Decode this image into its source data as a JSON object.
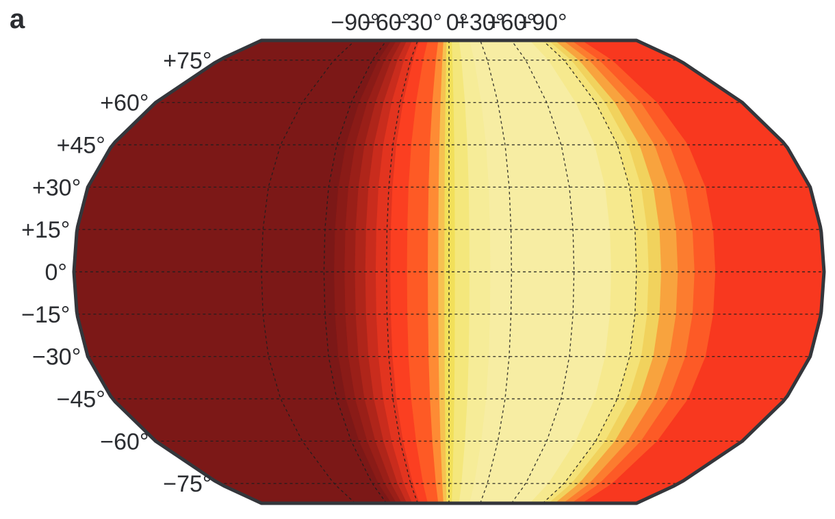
{
  "panel_label": "a",
  "map": {
    "projection": "Robinson",
    "longitude_labels": [
      "−90°",
      "−60°",
      "−30°",
      "0°",
      "+30°",
      "+60°",
      "+90°"
    ],
    "longitude_values": [
      -90,
      -60,
      -30,
      0,
      30,
      60,
      90
    ],
    "latitude_labels": [
      "+75°",
      "+60°",
      "+45°",
      "+30°",
      "+15°",
      "0°",
      "−15°",
      "−30°",
      "−45°",
      "−60°",
      "−75°"
    ],
    "latitude_values": [
      75,
      60,
      45,
      30,
      15,
      0,
      -15,
      -30,
      -45,
      -60,
      -75
    ],
    "latitude_extent": 82,
    "longitude_extent": 180,
    "gridlines": "dashed",
    "colors": {
      "outline": "#34363b",
      "grid": "#1f1f1f",
      "label": "#2b2d31"
    },
    "color_bands": [
      {
        "to_lon": -55,
        "color": "#7c1817"
      },
      {
        "to_lon": -50,
        "color": "#8a1b17"
      },
      {
        "to_lon": -45,
        "color": "#9a1f18"
      },
      {
        "to_lon": -40,
        "color": "#af251a"
      },
      {
        "to_lon": -35,
        "color": "#c92c1d"
      },
      {
        "to_lon": -28,
        "color": "#e2341f"
      },
      {
        "to_lon": -20,
        "color": "#fb3f21"
      },
      {
        "to_lon": -10,
        "color": "#fe5a25"
      },
      {
        "to_lon": -5,
        "color": "#fe8b34"
      },
      {
        "to_lon": -2,
        "color": "#f6c151"
      },
      {
        "to_lon": 3,
        "color": "#f2e05a"
      },
      {
        "to_lon": 10,
        "color": "#f4e77c"
      },
      {
        "to_lon": 20,
        "color": "#f6ec98"
      },
      {
        "to_lon": 78,
        "color": "#f7eda3"
      },
      {
        "to_lon": 90,
        "color": "#f6e98e"
      },
      {
        "to_lon": 96,
        "color": "#f4e277"
      },
      {
        "to_lon": 102,
        "color": "#f1d25d"
      },
      {
        "to_lon": 110,
        "color": "#f8a33e"
      },
      {
        "to_lon": 118,
        "color": "#fc7c2f"
      },
      {
        "to_lon": 128,
        "color": "#fd5a26"
      },
      {
        "to_lon": 180,
        "color": "#f8381f"
      }
    ]
  }
}
